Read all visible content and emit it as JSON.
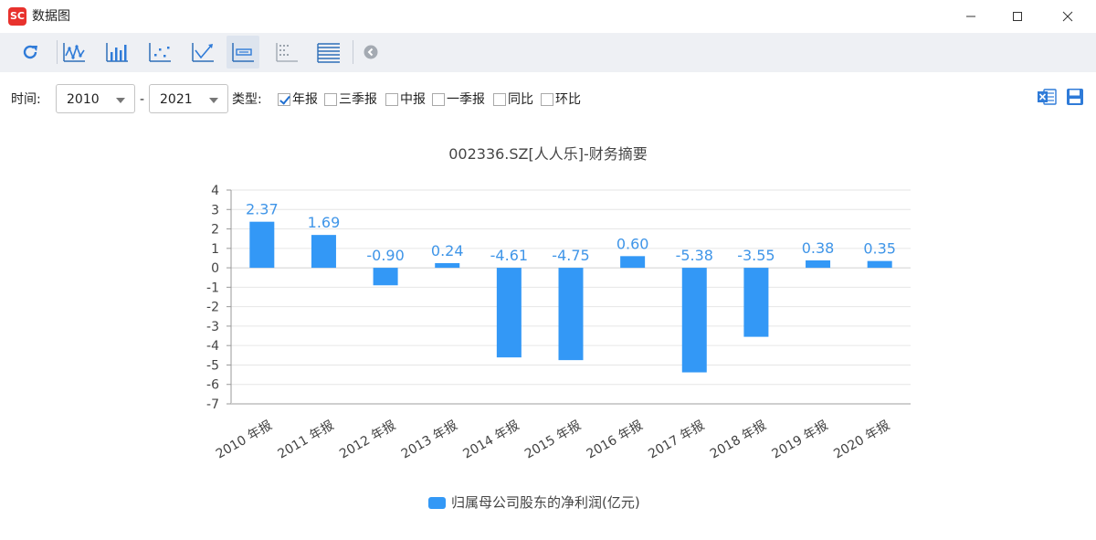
{
  "window": {
    "title": "数据图",
    "app_icon_text": "SC"
  },
  "toolbar": {
    "buttons": [
      {
        "name": "refresh-icon"
      },
      {
        "name": "line-chart-icon"
      },
      {
        "name": "bar-chart-icon"
      },
      {
        "name": "scatter-chart-icon"
      },
      {
        "name": "trend-chart-icon"
      },
      {
        "name": "data-label-icon",
        "active": true
      },
      {
        "name": "horizontal-list-icon"
      },
      {
        "name": "table-lines-icon"
      },
      {
        "name": "collapse-left-icon"
      }
    ]
  },
  "filters": {
    "time_label": "时间:",
    "year_from": "2010",
    "separator": "-",
    "year_to": "2021",
    "type_label": "类型:",
    "types": [
      {
        "label": "年报",
        "checked": true
      },
      {
        "label": "三季报",
        "checked": false
      },
      {
        "label": "中报",
        "checked": false
      },
      {
        "label": "一季报",
        "checked": false
      },
      {
        "label": "同比",
        "checked": false
      },
      {
        "label": "环比",
        "checked": false
      }
    ]
  },
  "actions": {
    "excel_icon": "excel-export-icon",
    "save_icon": "save-icon"
  },
  "colors": {
    "bar": "#3398f6",
    "label": "#3f95e8",
    "axis_text": "#444444",
    "grid": "#e6e6e6"
  },
  "chart_data": {
    "type": "bar",
    "title": "002336.SZ[人人乐]-财务摘要",
    "categories": [
      "2010 年报",
      "2011 年报",
      "2012 年报",
      "2013 年报",
      "2014 年报",
      "2015 年报",
      "2016 年报",
      "2017 年报",
      "2018 年报",
      "2019 年报",
      "2020 年报"
    ],
    "series": [
      {
        "name": "归属母公司股东的净利润(亿元)",
        "values": [
          2.37,
          1.69,
          -0.9,
          0.24,
          -4.61,
          -4.75,
          0.6,
          -5.38,
          -3.55,
          0.38,
          0.35
        ]
      }
    ],
    "value_labels": [
      "2.37",
      "1.69",
      "-0.90",
      "0.24",
      "-4.61",
      "-4.75",
      "0.60",
      "-5.38",
      "-3.55",
      "0.38",
      "0.35"
    ],
    "ylim": [
      -7,
      4
    ],
    "yticks": [
      "4",
      "3",
      "2",
      "1",
      "0",
      "-1",
      "-2",
      "-3",
      "-4",
      "-5",
      "-6",
      "-7"
    ],
    "grid": true,
    "legend_position": "bottom"
  }
}
